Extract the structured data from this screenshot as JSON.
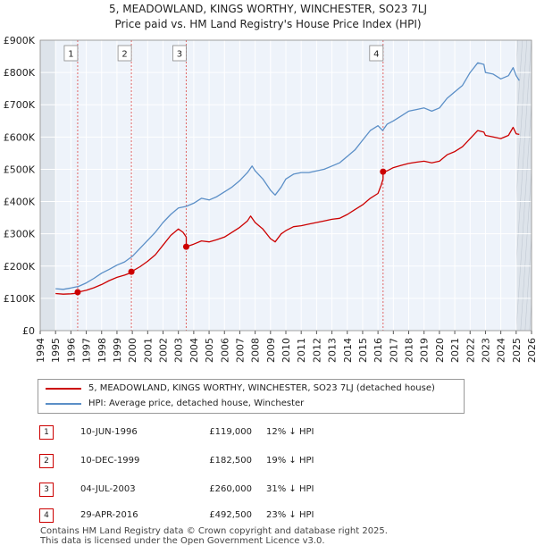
{
  "title_line1": "5, MEADOWLAND, KINGS WORTHY, WINCHESTER, SO23 7LJ",
  "title_line2": "Price paid vs. HM Land Registry's House Price Index (HPI)",
  "chart_data": {
    "type": "line",
    "title": "5, MEADOWLAND, KINGS WORTHY, WINCHESTER, SO23 7LJ — Price paid vs. HM Land Registry's House Price Index (HPI)",
    "xlabel": "",
    "ylabel": "",
    "xlim": [
      1994,
      2026
    ],
    "ylim": [
      0,
      900000
    ],
    "x_ticks": [
      1994,
      1995,
      1996,
      1997,
      1998,
      1999,
      2000,
      2001,
      2002,
      2003,
      2004,
      2005,
      2006,
      2007,
      2008,
      2009,
      2010,
      2011,
      2012,
      2013,
      2014,
      2015,
      2016,
      2017,
      2018,
      2019,
      2020,
      2021,
      2022,
      2023,
      2024,
      2025,
      2026
    ],
    "y_ticks": [
      {
        "value": 0,
        "label": "£0"
      },
      {
        "value": 100000,
        "label": "£100K"
      },
      {
        "value": 200000,
        "label": "£200K"
      },
      {
        "value": 300000,
        "label": "£300K"
      },
      {
        "value": 400000,
        "label": "£400K"
      },
      {
        "value": 500000,
        "label": "£500K"
      },
      {
        "value": 600000,
        "label": "£600K"
      },
      {
        "value": 700000,
        "label": "£700K"
      },
      {
        "value": 800000,
        "label": "£800K"
      },
      {
        "value": 900000,
        "label": "£900K"
      }
    ],
    "grid": true,
    "shaded_ranges": [
      [
        1994,
        1995
      ],
      [
        2025,
        2026
      ]
    ],
    "series": [
      {
        "name": "5, MEADOWLAND, KINGS WORTHY, WINCHESTER, SO23 7LJ (detached house)",
        "color": "#cc0000",
        "x": [
          1995.0,
          1995.5,
          1996.0,
          1996.44,
          1996.44,
          1997.0,
          1997.5,
          1998.0,
          1998.5,
          1999.0,
          1999.5,
          1999.94,
          1999.94,
          2000.5,
          2001.0,
          2001.5,
          2002.0,
          2002.5,
          2003.0,
          2003.3,
          2003.51,
          2003.51,
          2004.0,
          2004.5,
          2005.0,
          2005.5,
          2006.0,
          2006.5,
          2007.0,
          2007.5,
          2007.7,
          2008.0,
          2008.5,
          2009.0,
          2009.3,
          2009.7,
          2010.0,
          2010.5,
          2011.0,
          2011.5,
          2012.0,
          2012.5,
          2013.0,
          2013.5,
          2014.0,
          2014.5,
          2015.0,
          2015.5,
          2016.0,
          2016.2,
          2016.33,
          2016.33,
          2016.6,
          2017.0,
          2017.5,
          2018.0,
          2018.5,
          2019.0,
          2019.5,
          2020.0,
          2020.5,
          2021.0,
          2021.5,
          2022.0,
          2022.5,
          2022.9,
          2023.0,
          2023.5,
          2024.0,
          2024.5,
          2024.8,
          2025.0,
          2025.2
        ],
        "values": [
          115000,
          113000,
          114000,
          116000,
          119000,
          125000,
          133000,
          143000,
          155000,
          165000,
          172000,
          180000,
          182500,
          198000,
          215000,
          235000,
          265000,
          295000,
          315000,
          305000,
          290000,
          260000,
          268000,
          278000,
          275000,
          282000,
          290000,
          305000,
          320000,
          340000,
          355000,
          335000,
          315000,
          285000,
          275000,
          300000,
          310000,
          322000,
          325000,
          330000,
          335000,
          340000,
          345000,
          348000,
          360000,
          375000,
          390000,
          410000,
          425000,
          450000,
          470000,
          492500,
          495000,
          505000,
          512000,
          518000,
          522000,
          525000,
          520000,
          525000,
          545000,
          555000,
          570000,
          595000,
          620000,
          615000,
          605000,
          600000,
          595000,
          605000,
          630000,
          610000,
          608000
        ]
      },
      {
        "name": "HPI: Average price, detached house, Winchester",
        "color": "#5b8fc7",
        "x": [
          1995.0,
          1995.5,
          1996.0,
          1996.5,
          1997.0,
          1997.5,
          1998.0,
          1998.5,
          1999.0,
          1999.5,
          2000.0,
          2000.5,
          2001.0,
          2001.5,
          2002.0,
          2002.5,
          2003.0,
          2003.5,
          2004.0,
          2004.5,
          2005.0,
          2005.5,
          2006.0,
          2006.5,
          2007.0,
          2007.5,
          2007.8,
          2008.0,
          2008.5,
          2009.0,
          2009.3,
          2009.7,
          2010.0,
          2010.5,
          2011.0,
          2011.5,
          2012.0,
          2012.5,
          2013.0,
          2013.5,
          2014.0,
          2014.5,
          2015.0,
          2015.5,
          2016.0,
          2016.3,
          2016.6,
          2017.0,
          2017.5,
          2018.0,
          2018.5,
          2019.0,
          2019.5,
          2020.0,
          2020.5,
          2021.0,
          2021.5,
          2022.0,
          2022.5,
          2022.9,
          2023.0,
          2023.5,
          2024.0,
          2024.5,
          2024.8,
          2025.0,
          2025.2
        ],
        "values": [
          130000,
          128000,
          132000,
          137000,
          148000,
          162000,
          178000,
          190000,
          203000,
          213000,
          230000,
          255000,
          280000,
          305000,
          335000,
          360000,
          380000,
          385000,
          395000,
          410000,
          405000,
          415000,
          430000,
          445000,
          465000,
          490000,
          510000,
          495000,
          470000,
          435000,
          420000,
          445000,
          470000,
          485000,
          490000,
          490000,
          495000,
          500000,
          510000,
          520000,
          540000,
          560000,
          590000,
          620000,
          635000,
          620000,
          640000,
          650000,
          665000,
          680000,
          685000,
          690000,
          680000,
          690000,
          720000,
          740000,
          760000,
          800000,
          830000,
          825000,
          800000,
          795000,
          780000,
          790000,
          815000,
          790000,
          775000
        ]
      }
    ],
    "markers": [
      {
        "label": "1",
        "x": 1996.44,
        "y": 119000
      },
      {
        "label": "2",
        "x": 1999.94,
        "y": 182500
      },
      {
        "label": "3",
        "x": 2003.51,
        "y": 260000
      },
      {
        "label": "4",
        "x": 2016.33,
        "y": 492500
      }
    ]
  },
  "legend": [
    {
      "label": "5, MEADOWLAND, KINGS WORTHY, WINCHESTER, SO23 7LJ (detached house)",
      "color": "#cc0000"
    },
    {
      "label": "HPI: Average price, detached house, Winchester",
      "color": "#5b8fc7"
    }
  ],
  "sales": [
    {
      "num": "1",
      "date": "10-JUN-1996",
      "price": "£119,000",
      "diff": "12% ↓ HPI"
    },
    {
      "num": "2",
      "date": "10-DEC-1999",
      "price": "£182,500",
      "diff": "19% ↓ HPI"
    },
    {
      "num": "3",
      "date": "04-JUL-2003",
      "price": "£260,000",
      "diff": "31% ↓ HPI"
    },
    {
      "num": "4",
      "date": "29-APR-2016",
      "price": "£492,500",
      "diff": "23% ↓ HPI"
    }
  ],
  "footer": {
    "line1": "Contains HM Land Registry data © Crown copyright and database right 2025.",
    "line2": "This data is licensed under the Open Government Licence v3.0."
  }
}
